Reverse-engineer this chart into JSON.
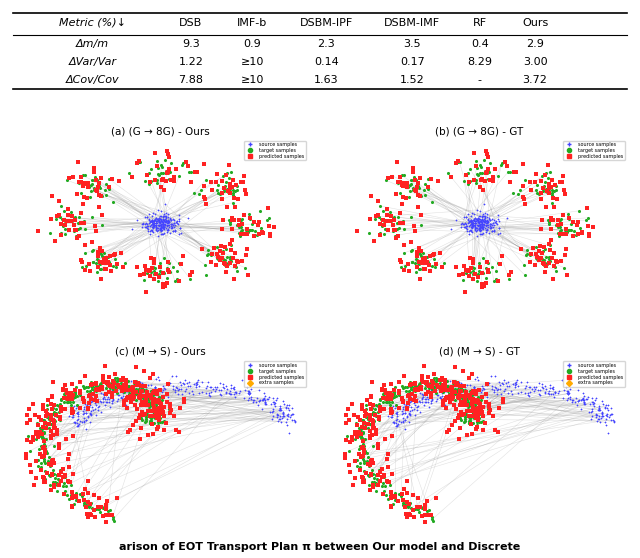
{
  "table": {
    "header": [
      "Metric (%)↓",
      "DSB",
      "IMF-b",
      "DSBM-IPF",
      "DSBM-IMF",
      "RF",
      "Ours"
    ],
    "rows": [
      [
        "Δm/m",
        "9.3",
        "0.9",
        "2.3",
        "3.5",
        "0.4",
        "2.9"
      ],
      [
        "ΔVar/Var",
        "1.22",
        "≥10",
        "0.14",
        "0.17",
        "8.29",
        "3.00"
      ],
      [
        "ΔCov/Cov",
        "7.88",
        "≥10",
        "1.63",
        "1.52",
        "-",
        "3.72"
      ]
    ]
  },
  "captions": [
    "(a) (G → 8G) - Ours",
    "(b) (G → 8G) - GT",
    "(c) (M → S) - Ours",
    "(d) (M → S) - GT"
  ],
  "bottom_text": "arison of EOT Transport Plan π between Our model and Discrete",
  "bg_color": "#ffffff",
  "scatter_colors": {
    "source": "#4444ff",
    "target": "#ff2222",
    "predicted": "#22aa22",
    "extra": "#ffaa00"
  },
  "line_color": "#888888",
  "line_alpha": 0.25,
  "seed": 42
}
